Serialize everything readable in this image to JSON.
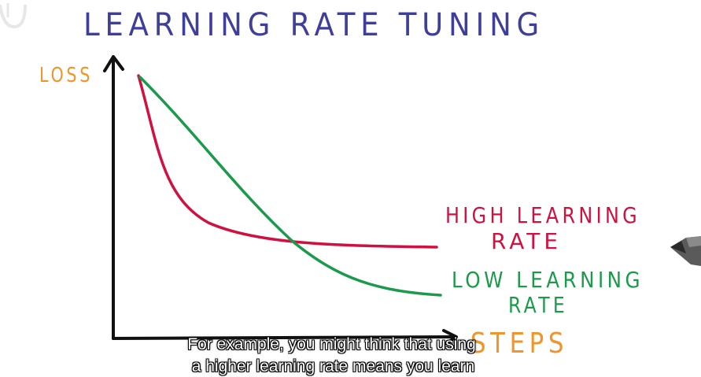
{
  "title": "LEARNING RATE TUNING",
  "axes": {
    "y_label": "LOSS",
    "x_label": "STEPS"
  },
  "curves": {
    "high": {
      "label_line_1": "HIGH LEARNING",
      "label_line_2": "RATE",
      "color": "#d0103f"
    },
    "low": {
      "label_line_1": "LOW LEARNING",
      "label_line_2": "RATE",
      "color": "#1a9a4a"
    }
  },
  "colors": {
    "title": "#3f3f9a",
    "axis_label": "#f0952a",
    "axis": "#111111"
  },
  "pen": {
    "icon": "pen-icon"
  },
  "captions": {
    "line_1": "For example, you might think that using",
    "line_2": "a higher learning rate means you learn"
  }
}
